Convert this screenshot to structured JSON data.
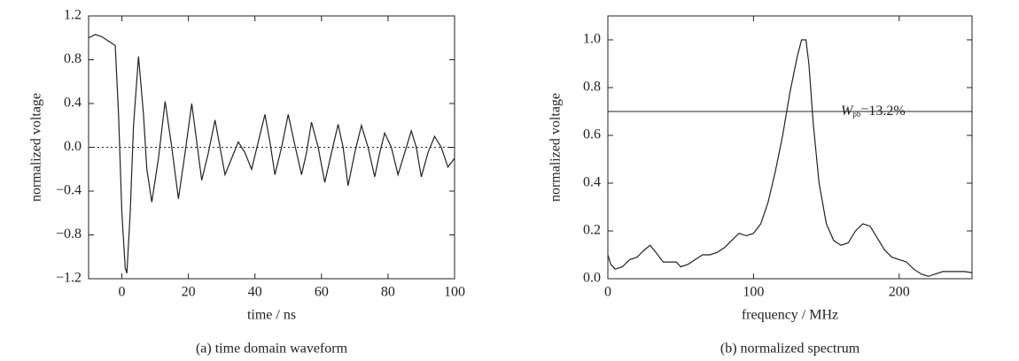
{
  "chart_data": [
    {
      "type": "line",
      "title": "(a) time domain waveform",
      "x_label": "time / ns",
      "y_label": "normalized voltage",
      "x": [
        -10,
        -8,
        -6,
        -4,
        -2,
        -1,
        0,
        1,
        1.5,
        2.5,
        3.5,
        5,
        6.5,
        7.5,
        9,
        11,
        13,
        15,
        17,
        19,
        21,
        22.5,
        24,
        26,
        28,
        29.5,
        31,
        33,
        35,
        37,
        39,
        41,
        43,
        44.5,
        46,
        48,
        50,
        52,
        54,
        55.5,
        57,
        59,
        61,
        63,
        65,
        66.5,
        68,
        70,
        72,
        74,
        76,
        77.5,
        79,
        81,
        83,
        85,
        87,
        88.5,
        90,
        92,
        94,
        96,
        98,
        100
      ],
      "series": [
        {
          "color": "#222222",
          "values": [
            1.0,
            1.03,
            1.01,
            0.97,
            0.93,
            0.3,
            -0.6,
            -1.1,
            -1.15,
            -0.6,
            0.2,
            0.83,
            0.3,
            -0.2,
            -0.5,
            -0.1,
            0.42,
            0.0,
            -0.47,
            -0.05,
            0.4,
            0.05,
            -0.3,
            -0.05,
            0.25,
            0.0,
            -0.25,
            -0.1,
            0.05,
            -0.05,
            -0.2,
            0.05,
            0.3,
            0.05,
            -0.25,
            0.0,
            0.3,
            0.02,
            -0.25,
            -0.05,
            0.23,
            0.0,
            -0.32,
            -0.05,
            0.21,
            0.0,
            -0.35,
            -0.05,
            0.2,
            0.0,
            -0.27,
            -0.05,
            0.13,
            0.0,
            -0.25,
            -0.05,
            0.15,
            0.0,
            -0.27,
            -0.05,
            0.1,
            0.0,
            -0.18,
            -0.1
          ]
        }
      ],
      "xlim": [
        -10,
        100
      ],
      "xticks": [
        0,
        20,
        40,
        60,
        80,
        100
      ],
      "ylim": [
        -1.2,
        1.2
      ],
      "yticks": [
        {
          "value": -1.2,
          "label": "−1.2"
        },
        {
          "value": -0.8,
          "label": "−0.8"
        },
        {
          "value": -0.4,
          "label": "−0.4"
        },
        {
          "value": 0,
          "label": "0.0"
        },
        0.4,
        0.8,
        1.2
      ],
      "hline": {
        "value": 0,
        "style": "dotted"
      }
    },
    {
      "type": "line",
      "title": "(b) normalized spectrum",
      "x_label": "frequency / MHz",
      "y_label": "normalized voltage",
      "x": [
        0,
        2,
        5,
        10,
        15,
        20,
        25,
        29,
        33,
        38,
        42,
        47,
        50,
        55,
        60,
        65,
        70,
        75,
        80,
        85,
        90,
        95,
        100,
        105,
        110,
        115,
        120,
        125,
        130,
        133,
        136,
        138,
        141,
        145,
        150,
        155,
        160,
        165,
        170,
        175,
        180,
        185,
        190,
        195,
        200,
        205,
        210,
        215,
        220,
        225,
        230,
        240,
        245,
        250
      ],
      "series": [
        {
          "color": "#222222",
          "values": [
            0.1,
            0.06,
            0.04,
            0.05,
            0.08,
            0.09,
            0.12,
            0.14,
            0.11,
            0.07,
            0.07,
            0.07,
            0.05,
            0.06,
            0.08,
            0.1,
            0.1,
            0.11,
            0.13,
            0.16,
            0.19,
            0.18,
            0.19,
            0.23,
            0.32,
            0.45,
            0.6,
            0.78,
            0.93,
            1.0,
            1.0,
            0.9,
            0.65,
            0.4,
            0.23,
            0.16,
            0.14,
            0.15,
            0.2,
            0.23,
            0.22,
            0.17,
            0.12,
            0.09,
            0.08,
            0.07,
            0.04,
            0.02,
            0.01,
            0.02,
            0.03,
            0.03,
            0.03,
            0.025
          ]
        }
      ],
      "xlim": [
        0,
        250
      ],
      "xticks": [
        0,
        100,
        200
      ],
      "ylim": [
        0,
        1.1
      ],
      "yticks": [
        {
          "value": 0,
          "label": "0.0"
        },
        0.2,
        0.4,
        0.6,
        0.8,
        {
          "value": 1,
          "label": "1.0"
        }
      ],
      "hline": {
        "value": 0.7,
        "style": "solid"
      },
      "annotation": {
        "text": "W",
        "subscript": "pb",
        "suffix": "=13.2%"
      }
    }
  ]
}
